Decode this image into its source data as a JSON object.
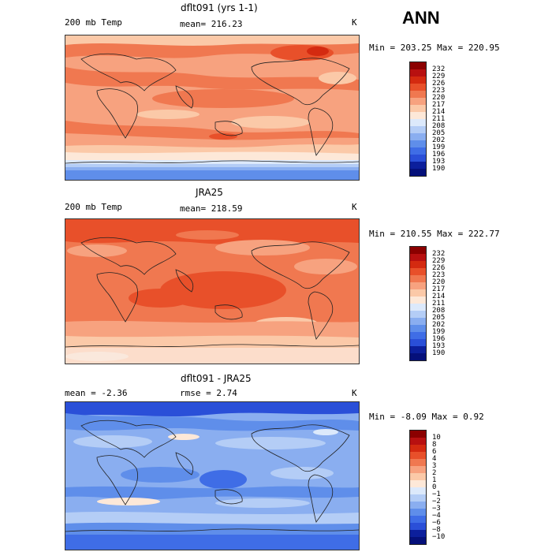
{
  "season": "ANN",
  "units": "K",
  "panels": [
    {
      "title": "dflt091 (yrs 1-1)",
      "left_label": "200 mb Temp",
      "center_label": "mean= 216.23",
      "stats": "Min = 203.25 Max = 220.95",
      "colorbar_labels": [
        "232",
        "229",
        "226",
        "223",
        "220",
        "217",
        "214",
        "211",
        "208",
        "205",
        "202",
        "199",
        "196",
        "193",
        "190"
      ]
    },
    {
      "title": "JRA25",
      "left_label": "200 mb Temp",
      "center_label": "mean= 218.59",
      "stats": "Min = 210.55 Max = 222.77",
      "colorbar_labels": [
        "232",
        "229",
        "226",
        "223",
        "220",
        "217",
        "214",
        "211",
        "208",
        "205",
        "202",
        "199",
        "196",
        "193",
        "190"
      ]
    },
    {
      "title": "dflt091 - JRA25",
      "left_label": "mean =   -2.36",
      "center_label": "rmse =    2.74",
      "stats": "Min =  -8.09 Max =   0.92",
      "colorbar_labels": [
        "10",
        "8",
        "6",
        "4",
        "3",
        "2",
        "1",
        "0",
        "−1",
        "−2",
        "−3",
        "−4",
        "−6",
        "−8",
        "−10"
      ]
    }
  ],
  "colors": {
    "temp_scale": [
      "#8b0000",
      "#b81010",
      "#d42a10",
      "#e8502a",
      "#f07850",
      "#f7a27f",
      "#fbc9a8",
      "#fde8d8",
      "#dce9fb",
      "#b4cdf6",
      "#8aaef0",
      "#5f8eea",
      "#3f6de6",
      "#2a4fd8",
      "#0c1f9c",
      "#05107a"
    ],
    "diff_scale": [
      "#8b0000",
      "#b81010",
      "#d42a10",
      "#e8502a",
      "#f07850",
      "#f7a27f",
      "#fbc9a8",
      "#fde8d8",
      "#dce9fb",
      "#b4cdf6",
      "#8aaef0",
      "#5f8eea",
      "#3f6de6",
      "#2a4fd8",
      "#0c1f9c",
      "#05107a"
    ]
  }
}
